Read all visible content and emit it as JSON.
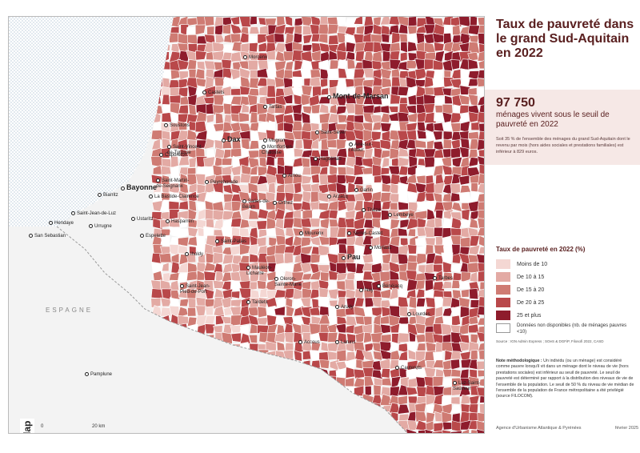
{
  "title": "Taux de pauvreté dans le grand Sud-Aquitain en 2022",
  "headline": {
    "number": "97 750",
    "subtitle": "ménages vivent sous le seuil de pauvreté en 2022",
    "text": "Soit 35 % de l'ensemble des ménages du grand Sud-Aquitain dont le revenu par mois (hors aides sociales et prestations familiales) est inférieur à 829 euros."
  },
  "legend": {
    "title": "Taux de pauvreté en 2022 (%)",
    "classes": [
      {
        "label": "Moins de 10",
        "color": "#f4d7d3"
      },
      {
        "label": "De 10 à 15",
        "color": "#e3aaa4"
      },
      {
        "label": "De 15 à 20",
        "color": "#cf7b73"
      },
      {
        "label": "De 20 à 25",
        "color": "#b9484a"
      },
      {
        "label": "25 et plus",
        "color": "#8e1c2c"
      }
    ],
    "no_data": "Données non disponibles (nb. de ménages pauvres <10)"
  },
  "source": "Source : IGN Admin Express ; SOeS & DGFiP, Filosofi 2022, CASD",
  "note": {
    "label": "Note méthodologique :",
    "text": "Un individu (ou un ménage) est considéré comme pauvre lorsqu'il vit dans un ménage dont le niveau de vie (hors prestations sociales) est inférieur au seuil de pauvreté. Le seuil de pauvreté est déterminé par rapport à la distribution des niveaux de vie de l'ensemble de la population. Le seuil de 50 % du niveau de vie médian de l'ensemble de la population de France métropolitaine a été privilégié (source FILOCOM)."
  },
  "footer": {
    "agency": "Agence d'Urbanisme Atlantique & Pyrénées",
    "date": "février 2025"
  },
  "logo_text": "audap",
  "scale": {
    "start": "0",
    "end": "20 km"
  },
  "map": {
    "country_label": "ESPAGNE",
    "cities": [
      {
        "name": "Morcenx",
        "big": false
      },
      {
        "name": "Castets",
        "big": false
      },
      {
        "name": "Tartas",
        "big": false
      },
      {
        "name": "Mont-de-Marsan",
        "big": true
      },
      {
        "name": "Soustons",
        "big": false
      },
      {
        "name": "Dax",
        "big": true
      },
      {
        "name": "Saint-Sever",
        "big": false
      },
      {
        "name": "Mugron",
        "big": false
      },
      {
        "name": "Montfort-en-Chalosse",
        "big": false
      },
      {
        "name": "Aire-sur-l'Adour",
        "big": false
      },
      {
        "name": "Saint-Vincent-de-Tyrosse",
        "big": false
      },
      {
        "name": "Capbreton",
        "big": false
      },
      {
        "name": "Hagetmau",
        "big": false
      },
      {
        "name": "Bayonne",
        "big": true
      },
      {
        "name": "Saint-Martin-de-Seignanx",
        "big": false
      },
      {
        "name": "Peyrehorade",
        "big": false
      },
      {
        "name": "Amou",
        "big": false
      },
      {
        "name": "Biarritz",
        "big": false
      },
      {
        "name": "La Bastide-Clairence",
        "big": false
      },
      {
        "name": "Salies-de-Béarn",
        "big": false
      },
      {
        "name": "Orthez",
        "big": false
      },
      {
        "name": "Arzacq",
        "big": false
      },
      {
        "name": "Thèze",
        "big": false
      },
      {
        "name": "Garlin",
        "big": false
      },
      {
        "name": "Lembeye",
        "big": false
      },
      {
        "name": "Saint-Jean-de-Luz",
        "big": false
      },
      {
        "name": "Hendaye",
        "big": false
      },
      {
        "name": "Urrugne",
        "big": false
      },
      {
        "name": "Ustaritz",
        "big": false
      },
      {
        "name": "Hasparren",
        "big": false
      },
      {
        "name": "San Sebastian",
        "big": false
      },
      {
        "name": "Mourenx",
        "big": false
      },
      {
        "name": "Serres-Castet",
        "big": false
      },
      {
        "name": "Espelette",
        "big": false
      },
      {
        "name": "Saint-Palais",
        "big": false
      },
      {
        "name": "Pau",
        "big": true
      },
      {
        "name": "Morlaas",
        "big": false
      },
      {
        "name": "Iholdy",
        "big": false
      },
      {
        "name": "Mauléon-Licharre",
        "big": false
      },
      {
        "name": "Oloron-Sainte-Marie",
        "big": false
      },
      {
        "name": "Nay",
        "big": false
      },
      {
        "name": "Tarbes",
        "big": false
      },
      {
        "name": "Bénéjacq",
        "big": false
      },
      {
        "name": "Saint-Jean-Pied-de-Port",
        "big": false
      },
      {
        "name": "Tardets",
        "big": false
      },
      {
        "name": "Arudy",
        "big": false
      },
      {
        "name": "Lourdes",
        "big": false
      },
      {
        "name": "Accous",
        "big": false
      },
      {
        "name": "Laruns",
        "big": false
      },
      {
        "name": "Pamplune",
        "big": false
      },
      {
        "name": "Cauterets",
        "big": false
      },
      {
        "name": "Luz-Saint-Sauveur",
        "big": false
      }
    ]
  }
}
